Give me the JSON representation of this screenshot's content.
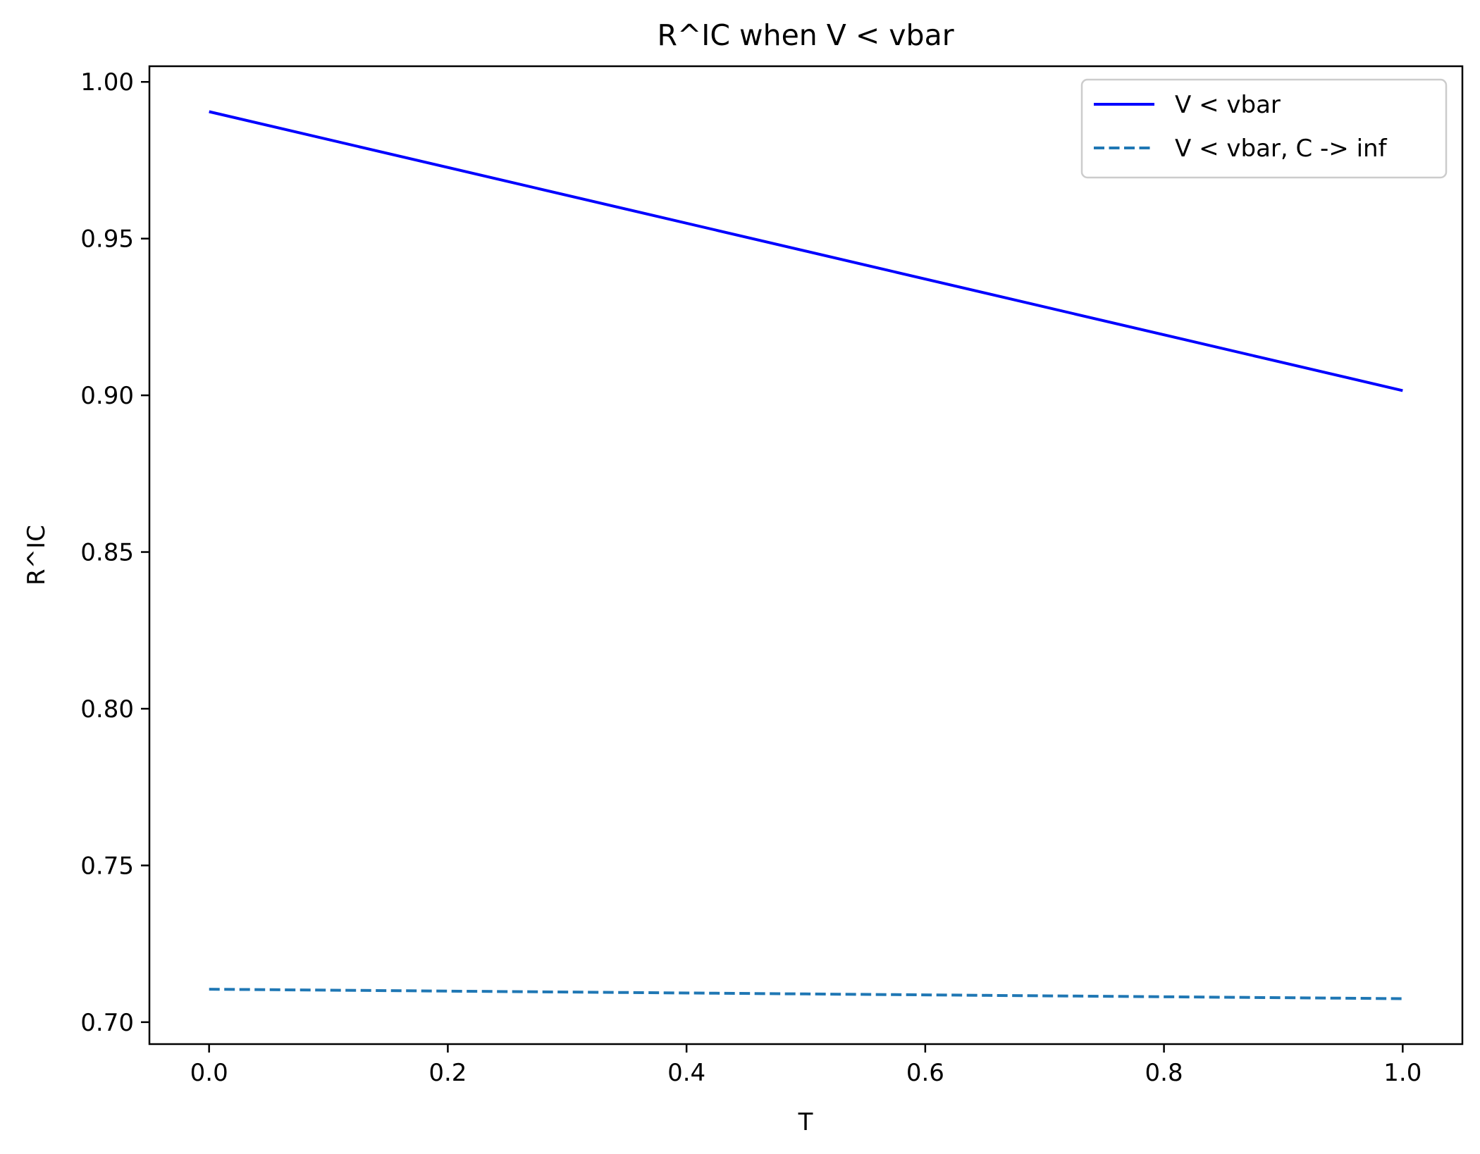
{
  "chart_data": {
    "type": "line",
    "title": "R^IC when V < vbar",
    "xlabel": "T",
    "ylabel": "R^IC",
    "xlim": [
      -0.05,
      1.05
    ],
    "ylim": [
      0.693,
      1.005
    ],
    "xticks": [
      0.0,
      0.2,
      0.4,
      0.6,
      0.8,
      1.0
    ],
    "xtick_labels": [
      "0.0",
      "0.2",
      "0.4",
      "0.6",
      "0.8",
      "1.0"
    ],
    "yticks": [
      0.7,
      0.75,
      0.8,
      0.85,
      0.9,
      0.95,
      1.0
    ],
    "ytick_labels": [
      "0.70",
      "0.75",
      "0.80",
      "0.85",
      "0.90",
      "0.95",
      "1.00"
    ],
    "grid": false,
    "legend_position": "top-right",
    "series": [
      {
        "name": "V < vbar",
        "style": "solid",
        "color": "#0000ff",
        "x": [
          0.0,
          1.0
        ],
        "y": [
          0.9905,
          0.9015
        ]
      },
      {
        "name": "V < vbar, C -> inf",
        "style": "dashed",
        "color": "#1f77b4",
        "x": [
          0.0,
          1.0
        ],
        "y": [
          0.7105,
          0.7075
        ]
      }
    ]
  }
}
